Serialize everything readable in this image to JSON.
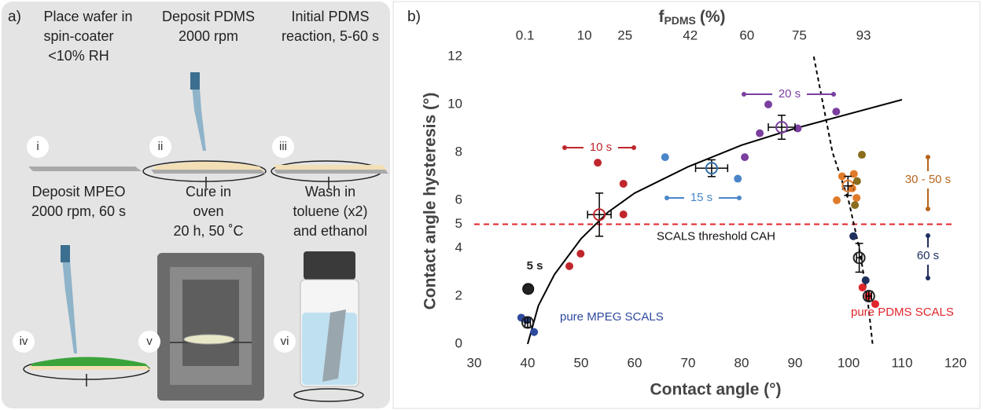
{
  "panel_a": {
    "label": "a)",
    "steps": [
      {
        "roman": "i",
        "lines": [
          "Place wafer in",
          "spin-coater",
          "<10% RH"
        ]
      },
      {
        "roman": "ii",
        "lines": [
          "Deposit PDMS",
          "2000 rpm"
        ]
      },
      {
        "roman": "iii",
        "lines": [
          "Initial PDMS",
          "reaction, 5-60 s"
        ]
      },
      {
        "roman": "iv",
        "lines": [
          "Deposit MPEO",
          "2000 rpm, 60 s"
        ]
      },
      {
        "roman": "v",
        "lines": [
          "Cure in",
          "oven",
          "20 h, 50 ˚C"
        ]
      },
      {
        "roman": "vi",
        "lines": [
          "Wash in",
          "toluene (x2)",
          "and ethanol"
        ]
      }
    ]
  },
  "chart_data": {
    "type": "scatter",
    "panel_label": "b)",
    "x_title": "Contact angle (°)",
    "y_title": "Contact angle hysteresis (°)",
    "x2_title": {
      "main": "f",
      "sub": "PDMS",
      "suffix": "(%)"
    },
    "xlim": [
      30,
      120
    ],
    "xticks": [
      30,
      40,
      50,
      60,
      70,
      80,
      90,
      100,
      110,
      120
    ],
    "ylim": [
      0,
      12
    ],
    "yticks": [
      0,
      2,
      4,
      5,
      6,
      8,
      10,
      12
    ],
    "x2ticks": [
      {
        "value": 39.5,
        "label": "0.1"
      },
      {
        "value": 50.6,
        "label": "10"
      },
      {
        "value": 58.2,
        "label": "25"
      },
      {
        "value": 70.4,
        "label": "42"
      },
      {
        "value": 81,
        "label": "60"
      },
      {
        "value": 90.8,
        "label": "75"
      },
      {
        "value": 102.8,
        "label": "93"
      }
    ],
    "grid": false,
    "threshold": {
      "value": 5,
      "label": "SCALS threshold CAH",
      "color": "#e0262b"
    },
    "series": [
      {
        "name": "pure MPEG SCALS",
        "color": "#2f4a9e",
        "x": [
          38.8,
          39.8,
          41.2
        ],
        "values": [
          1.1,
          1.0,
          0.5
        ],
        "mean": {
          "x": 40,
          "y": 0.9,
          "xerr": 0.5,
          "yerr": 0.2,
          "color": "#222"
        }
      },
      {
        "name": "5 s",
        "color": "#222222",
        "x": [
          40.1
        ],
        "values": [
          2.3
        ]
      },
      {
        "name": "10 s",
        "color": "#c0272d",
        "x": [
          47.8,
          49.9,
          53.1,
          57.9,
          57.9
        ],
        "values": [
          3.25,
          3.77,
          7.57,
          6.69,
          5.41
        ],
        "mean": {
          "x": 53.4,
          "y": 5.4,
          "xerr": 2.2,
          "yerr": 0.9,
          "color": "#c0272d"
        }
      },
      {
        "name": "15 s",
        "color": "#4a86c8",
        "x": [
          65.7,
          79.3
        ],
        "values": [
          7.8,
          6.9
        ],
        "mean": {
          "x": 74.4,
          "y": 7.34,
          "xerr": 3,
          "yerr": 0.35,
          "color": "#2f6ea8"
        }
      },
      {
        "name": "20 s",
        "color": "#7b3fa0",
        "x": [
          80.6,
          83.4,
          85,
          90.5,
          97.7
        ],
        "values": [
          7.8,
          8.8,
          10,
          9,
          9.7
        ],
        "mean": {
          "x": 87.5,
          "y": 9.05,
          "xerr": 2.5,
          "yerr": 0.5,
          "color": "#7b3fa0"
        }
      },
      {
        "name": "30 - 50 s",
        "color": "#b5651d",
        "x": [
          97.8,
          98.8,
          100.7,
          101,
          101.6,
          101.5,
          102.5,
          101.2
        ],
        "values": [
          6.0,
          7.0,
          6.5,
          7.1,
          6.8,
          6.1,
          7.9,
          5.8
        ],
        "point_colors": [
          "#e07b2a",
          "#e07b2a",
          "#e07b2a",
          "#e07b2a",
          "#8b6d1e",
          "#e07b2a",
          "#8b6d1e",
          "#8b6d1e"
        ],
        "mean": {
          "x": 99.9,
          "y": 6.6,
          "xerr": 1,
          "yerr": 0.4,
          "color": "#e07b2a"
        }
      },
      {
        "name": "60 s",
        "color": "#1f2f5e",
        "x": [
          100.9,
          103.2
        ],
        "values": [
          4.5,
          2.66
        ],
        "mean": {
          "x": 102,
          "y": 3.6,
          "xerr": 0.5,
          "yerr": 0.6,
          "color": "#222"
        }
      },
      {
        "name": "pure PDMS SCALS",
        "color": "#e0262b",
        "x": [
          102.6,
          103.7,
          105
        ],
        "values": [
          2.36,
          2.0,
          1.67
        ],
        "mean": {
          "x": 103.8,
          "y": 2.0,
          "xerr": 0.5,
          "yerr": 0.2,
          "color": "#222"
        }
      }
    ],
    "fits": [
      {
        "style": "solid",
        "x": [
          40,
          42,
          45,
          50,
          55,
          60,
          70,
          80,
          90,
          100,
          110
        ],
        "values": [
          0,
          1.6,
          2.9,
          4.4,
          5.5,
          6.3,
          7.4,
          8.3,
          9.0,
          9.6,
          10.2
        ]
      },
      {
        "style": "dashed",
        "x": [
          93.5,
          97,
          100,
          102,
          103.5,
          104.5
        ],
        "values": [
          12,
          8,
          6,
          4,
          2,
          0
        ]
      }
    ]
  }
}
